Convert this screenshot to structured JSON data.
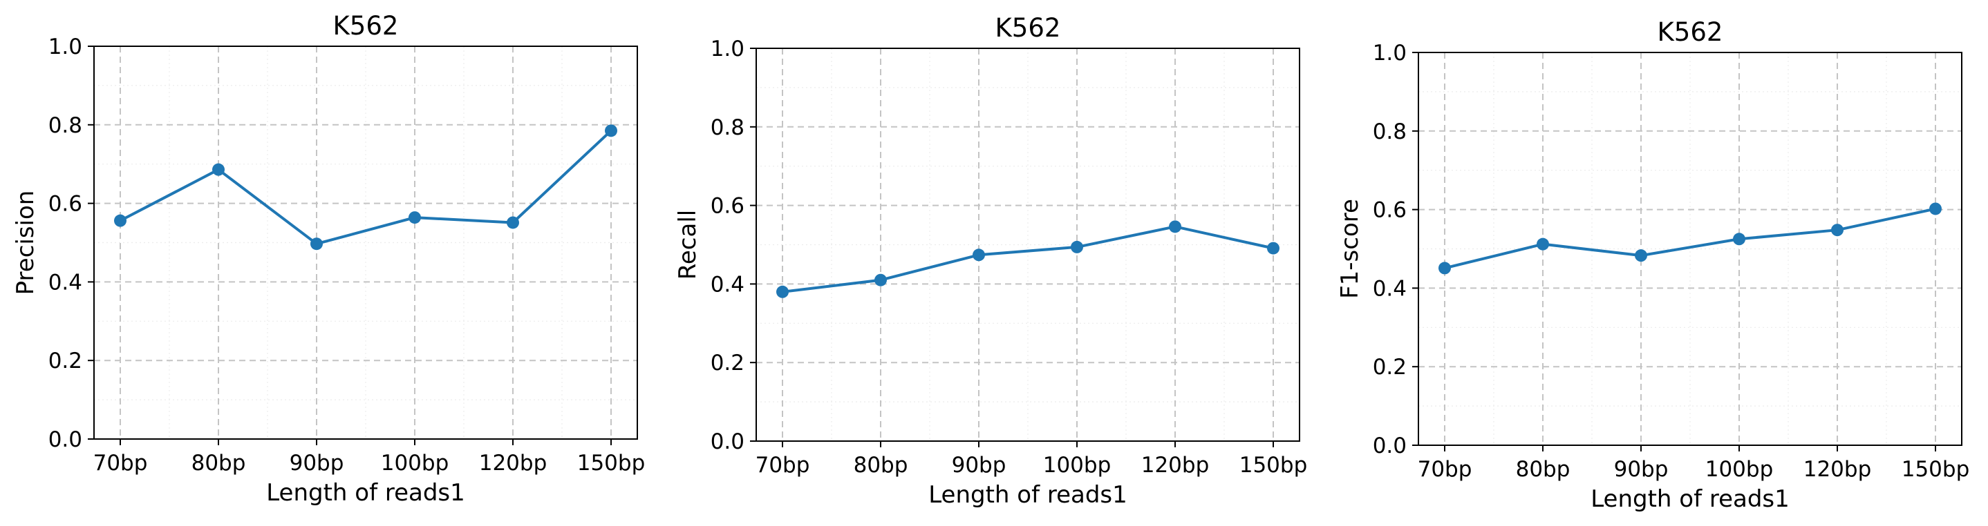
{
  "chart_data": [
    {
      "type": "line",
      "title": "K562",
      "xlabel": "Length of reads1",
      "ylabel": "Precision",
      "categories": [
        "70bp",
        "80bp",
        "90bp",
        "100bp",
        "120bp",
        "150bp"
      ],
      "values": [
        0.556,
        0.686,
        0.497,
        0.564,
        0.551,
        0.785
      ],
      "ylim": [
        0.0,
        1.0
      ],
      "yticks": [
        "0.0",
        "0.2",
        "0.4",
        "0.6",
        "0.8",
        "1.0"
      ],
      "grid": true,
      "color": "#1f77b4"
    },
    {
      "type": "line",
      "title": "K562",
      "xlabel": "Length of reads1",
      "ylabel": "Recall",
      "categories": [
        "70bp",
        "80bp",
        "90bp",
        "100bp",
        "120bp",
        "150bp"
      ],
      "values": [
        0.38,
        0.41,
        0.474,
        0.494,
        0.546,
        0.491
      ],
      "ylim": [
        0.0,
        1.0
      ],
      "yticks": [
        "0.0",
        "0.2",
        "0.4",
        "0.6",
        "0.8",
        "1.0"
      ],
      "grid": true,
      "color": "#1f77b4"
    },
    {
      "type": "line",
      "title": "K562",
      "xlabel": "Length of reads1",
      "ylabel": "F1-score",
      "categories": [
        "70bp",
        "80bp",
        "90bp",
        "100bp",
        "120bp",
        "150bp"
      ],
      "values": [
        0.451,
        0.512,
        0.483,
        0.525,
        0.548,
        0.602
      ],
      "ylim": [
        0.0,
        1.0
      ],
      "yticks": [
        "0.0",
        "0.2",
        "0.4",
        "0.6",
        "0.8",
        "1.0"
      ],
      "grid": true,
      "color": "#1f77b4"
    }
  ]
}
